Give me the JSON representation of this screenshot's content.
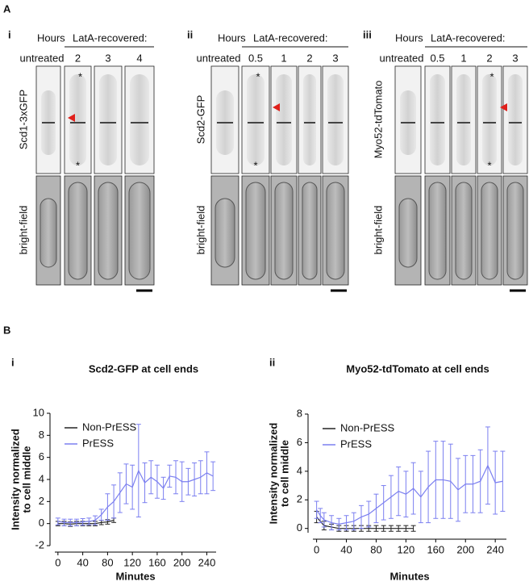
{
  "panel_a": {
    "label": "A",
    "hours_label": "Hours",
    "recovered_label": "LatA-recovered:",
    "untreated": "untreated",
    "brightfield": "bright-field",
    "asterisk": "*",
    "panels": [
      {
        "label": "i",
        "marker": "Scd1-3xGFP",
        "times": [
          "2",
          "3",
          "4"
        ]
      },
      {
        "label": "ii",
        "marker": "Scd2-GFP",
        "times": [
          "0.5",
          "1",
          "2",
          "3"
        ]
      },
      {
        "label": "iii",
        "marker": "Myo52-tdTomato",
        "times": [
          "0.5",
          "1",
          "2",
          "3"
        ]
      }
    ]
  },
  "panel_b": {
    "label": "B"
  },
  "chart_data": [
    {
      "type": "line",
      "panel": "i",
      "title": "Scd2-GFP at cell ends",
      "ylabel": [
        "Intensity normalized",
        "to cell middle"
      ],
      "xlabel": "Minutes",
      "xlim": [
        -5,
        255
      ],
      "xticks": [
        0,
        40,
        80,
        120,
        160,
        200,
        240
      ],
      "ylim": [
        -2,
        10
      ],
      "yticks": [
        -2,
        0,
        2,
        4,
        6,
        8,
        10
      ],
      "legend": "upper left",
      "series": [
        {
          "name": "Non-PrESS",
          "color": "#222222",
          "x": [
            0,
            10,
            20,
            30,
            40,
            50,
            60,
            70,
            80,
            90
          ],
          "values": [
            0,
            0,
            -0.05,
            0,
            0,
            0,
            0,
            0.1,
            0.15,
            0.3
          ],
          "errors": [
            0.2,
            0.2,
            0.2,
            0.2,
            0.2,
            0.2,
            0.2,
            0.2,
            0.2,
            0.2
          ]
        },
        {
          "name": "PrESS",
          "color": "#7b7ff0",
          "x": [
            0,
            10,
            20,
            30,
            40,
            50,
            60,
            70,
            80,
            90,
            100,
            110,
            120,
            130,
            140,
            150,
            160,
            170,
            180,
            190,
            200,
            210,
            220,
            230,
            240,
            250
          ],
          "values": [
            0.2,
            0.1,
            0.1,
            0.1,
            0.15,
            0.2,
            0.3,
            0.8,
            1.5,
            2.0,
            2.8,
            3.6,
            3.3,
            4.8,
            3.7,
            4.2,
            3.8,
            3.2,
            4.3,
            4.2,
            3.8,
            3.8,
            4.0,
            4.2,
            4.6,
            4.3
          ],
          "errors": [
            0.3,
            0.3,
            0.3,
            0.3,
            0.3,
            0.3,
            0.4,
            0.5,
            1.2,
            1.5,
            1.8,
            1.8,
            2.0,
            4.2,
            1.8,
            1.5,
            1.5,
            1.0,
            1.0,
            1.5,
            1.8,
            1.2,
            1.5,
            1.5,
            1.9,
            1.3
          ]
        }
      ]
    },
    {
      "type": "line",
      "panel": "ii",
      "title": "Myo52-tdTomato at cell ends",
      "ylabel": [
        "Intensity normalized",
        "to cell middle"
      ],
      "xlabel": "Minutes",
      "xlim": [
        -5,
        255
      ],
      "xticks": [
        0,
        40,
        80,
        120,
        160,
        200,
        240
      ],
      "ylim": [
        -0.3,
        8
      ],
      "yticks": [
        0,
        2,
        4,
        6,
        8
      ],
      "legend": "upper left",
      "series": [
        {
          "name": "Non-PrESS",
          "color": "#222222",
          "x": [
            0,
            10,
            20,
            30,
            40,
            50,
            60,
            70,
            80,
            90,
            100,
            110,
            120,
            130
          ],
          "values": [
            0.8,
            0.2,
            0.1,
            0,
            0,
            0,
            0,
            0,
            0,
            0,
            0,
            0,
            0,
            0
          ],
          "errors": [
            0.4,
            0.3,
            0.2,
            0.2,
            0.2,
            0.2,
            0.2,
            0.2,
            0.2,
            0.2,
            0.2,
            0.2,
            0.2,
            0.2
          ]
        },
        {
          "name": "PrESS",
          "color": "#7b7ff0",
          "x": [
            0,
            5,
            10,
            20,
            30,
            40,
            50,
            60,
            70,
            80,
            90,
            100,
            110,
            120,
            130,
            140,
            150,
            160,
            170,
            180,
            190,
            200,
            210,
            220,
            230,
            240,
            250
          ],
          "values": [
            1.3,
            0.9,
            0.6,
            0.4,
            0.3,
            0.4,
            0.5,
            0.8,
            1.0,
            1.4,
            1.8,
            2.2,
            2.6,
            2.4,
            2.8,
            2.2,
            2.9,
            3.4,
            3.4,
            3.3,
            2.7,
            3.1,
            3.1,
            3.3,
            4.4,
            3.2,
            3.3
          ],
          "errors": [
            0.6,
            0.5,
            0.5,
            0.5,
            0.4,
            0.5,
            0.6,
            0.8,
            0.9,
            1.0,
            1.2,
            1.5,
            1.7,
            1.6,
            1.8,
            1.8,
            2.5,
            2.7,
            2.7,
            2.6,
            2.2,
            2.0,
            2.0,
            2.2,
            2.7,
            2.2,
            2.1
          ]
        }
      ]
    }
  ]
}
